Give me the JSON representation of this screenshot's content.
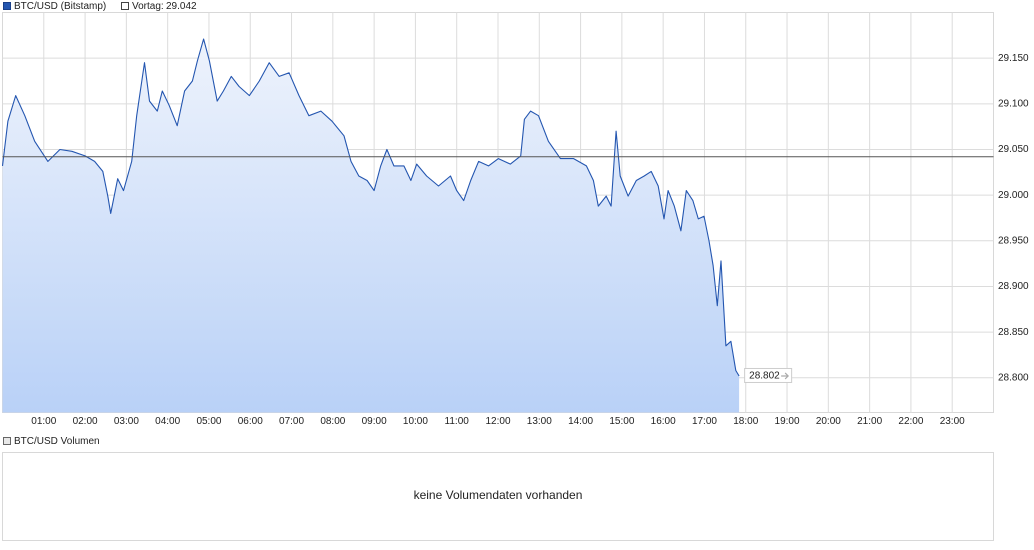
{
  "chart_data": {
    "type": "area",
    "series": [
      {
        "name": "BTC/USD (Bitstamp)",
        "color": "#2456b0",
        "x": [
          0,
          0.13,
          0.32,
          0.54,
          0.78,
          1.1,
          1.39,
          1.68,
          2.0,
          2.23,
          2.43,
          2.55,
          2.62,
          2.79,
          2.93,
          3.13,
          3.25,
          3.44,
          3.56,
          3.75,
          3.87,
          4.04,
          4.23,
          4.41,
          4.6,
          4.72,
          4.87,
          5.01,
          5.2,
          5.35,
          5.54,
          5.73,
          5.98,
          6.22,
          6.46,
          6.7,
          6.94,
          7.18,
          7.42,
          7.71,
          7.98,
          8.27,
          8.44,
          8.63,
          8.83,
          9.0,
          9.16,
          9.31,
          9.48,
          9.72,
          9.89,
          10.03,
          10.27,
          10.56,
          10.85,
          11.0,
          11.17,
          11.34,
          11.53,
          11.77,
          12.01,
          12.3,
          12.55,
          12.64,
          12.79,
          12.98,
          13.22,
          13.51,
          13.83,
          14.14,
          14.31,
          14.43,
          14.62,
          14.74,
          14.86,
          14.96,
          15.15,
          15.35,
          15.54,
          15.71,
          15.88,
          16.02,
          16.12,
          16.27,
          16.43,
          16.56,
          16.72,
          16.85,
          16.99,
          17.11,
          17.21,
          17.31,
          17.4,
          17.52,
          17.64,
          17.76,
          17.84
        ],
        "values": [
          29.032,
          29.081,
          29.109,
          29.087,
          29.059,
          29.037,
          29.05,
          29.048,
          29.043,
          29.037,
          29.026,
          28.999,
          28.98,
          29.018,
          29.005,
          29.037,
          29.087,
          29.145,
          29.103,
          29.092,
          29.114,
          29.098,
          29.076,
          29.114,
          29.125,
          29.147,
          29.171,
          29.147,
          29.103,
          29.114,
          29.13,
          29.119,
          29.109,
          29.125,
          29.145,
          29.13,
          29.134,
          29.109,
          29.087,
          29.092,
          29.081,
          29.065,
          29.037,
          29.021,
          29.016,
          29.005,
          29.032,
          29.05,
          29.032,
          29.032,
          29.016,
          29.034,
          29.021,
          29.01,
          29.021,
          29.005,
          28.994,
          29.016,
          29.037,
          29.032,
          29.04,
          29.034,
          29.043,
          29.083,
          29.092,
          29.087,
          29.059,
          29.04,
          29.04,
          29.032,
          29.016,
          28.988,
          28.999,
          28.988,
          29.07,
          29.021,
          28.999,
          29.016,
          29.021,
          29.026,
          29.01,
          28.974,
          29.005,
          28.988,
          28.961,
          29.005,
          28.994,
          28.974,
          28.977,
          28.95,
          28.923,
          28.879,
          28.928,
          28.835,
          28.84,
          28.808,
          28.802
        ]
      }
    ],
    "previous_close": {
      "label": "Vortag:",
      "value": 29.042
    },
    "xlim": [
      0,
      24
    ],
    "xticks": [
      {
        "value": 1,
        "label": "01:00"
      },
      {
        "value": 2,
        "label": "02:00"
      },
      {
        "value": 3,
        "label": "03:00"
      },
      {
        "value": 4,
        "label": "04:00"
      },
      {
        "value": 5,
        "label": "05:00"
      },
      {
        "value": 6,
        "label": "06:00"
      },
      {
        "value": 7,
        "label": "07:00"
      },
      {
        "value": 8,
        "label": "08:00"
      },
      {
        "value": 9,
        "label": "09:00"
      },
      {
        "value": 10,
        "label": "10:00"
      },
      {
        "value": 11,
        "label": "11:00"
      },
      {
        "value": 12,
        "label": "12:00"
      },
      {
        "value": 13,
        "label": "13:00"
      },
      {
        "value": 14,
        "label": "14:00"
      },
      {
        "value": 15,
        "label": "15:00"
      },
      {
        "value": 16,
        "label": "16:00"
      },
      {
        "value": 17,
        "label": "17:00"
      },
      {
        "value": 18,
        "label": "18:00"
      },
      {
        "value": 19,
        "label": "19:00"
      },
      {
        "value": 20,
        "label": "20:00"
      },
      {
        "value": 21,
        "label": "21:00"
      },
      {
        "value": 22,
        "label": "22:00"
      },
      {
        "value": 23,
        "label": "23:00"
      }
    ],
    "ylim": [
      28.762,
      29.2
    ],
    "yticks": [
      {
        "value": 28.8,
        "label": "28.800"
      },
      {
        "value": 28.85,
        "label": "28.850"
      },
      {
        "value": 28.9,
        "label": "28.900"
      },
      {
        "value": 28.95,
        "label": "28.950"
      },
      {
        "value": 29.0,
        "label": "29.000"
      },
      {
        "value": 29.05,
        "label": "29.050"
      },
      {
        "value": 29.1,
        "label": "29.100"
      },
      {
        "value": 29.15,
        "label": "29.150"
      }
    ],
    "grid": true,
    "volume_panel": {
      "title": "BTC/USD Volumen",
      "message": "keine Volumendaten vorhanden"
    }
  }
}
